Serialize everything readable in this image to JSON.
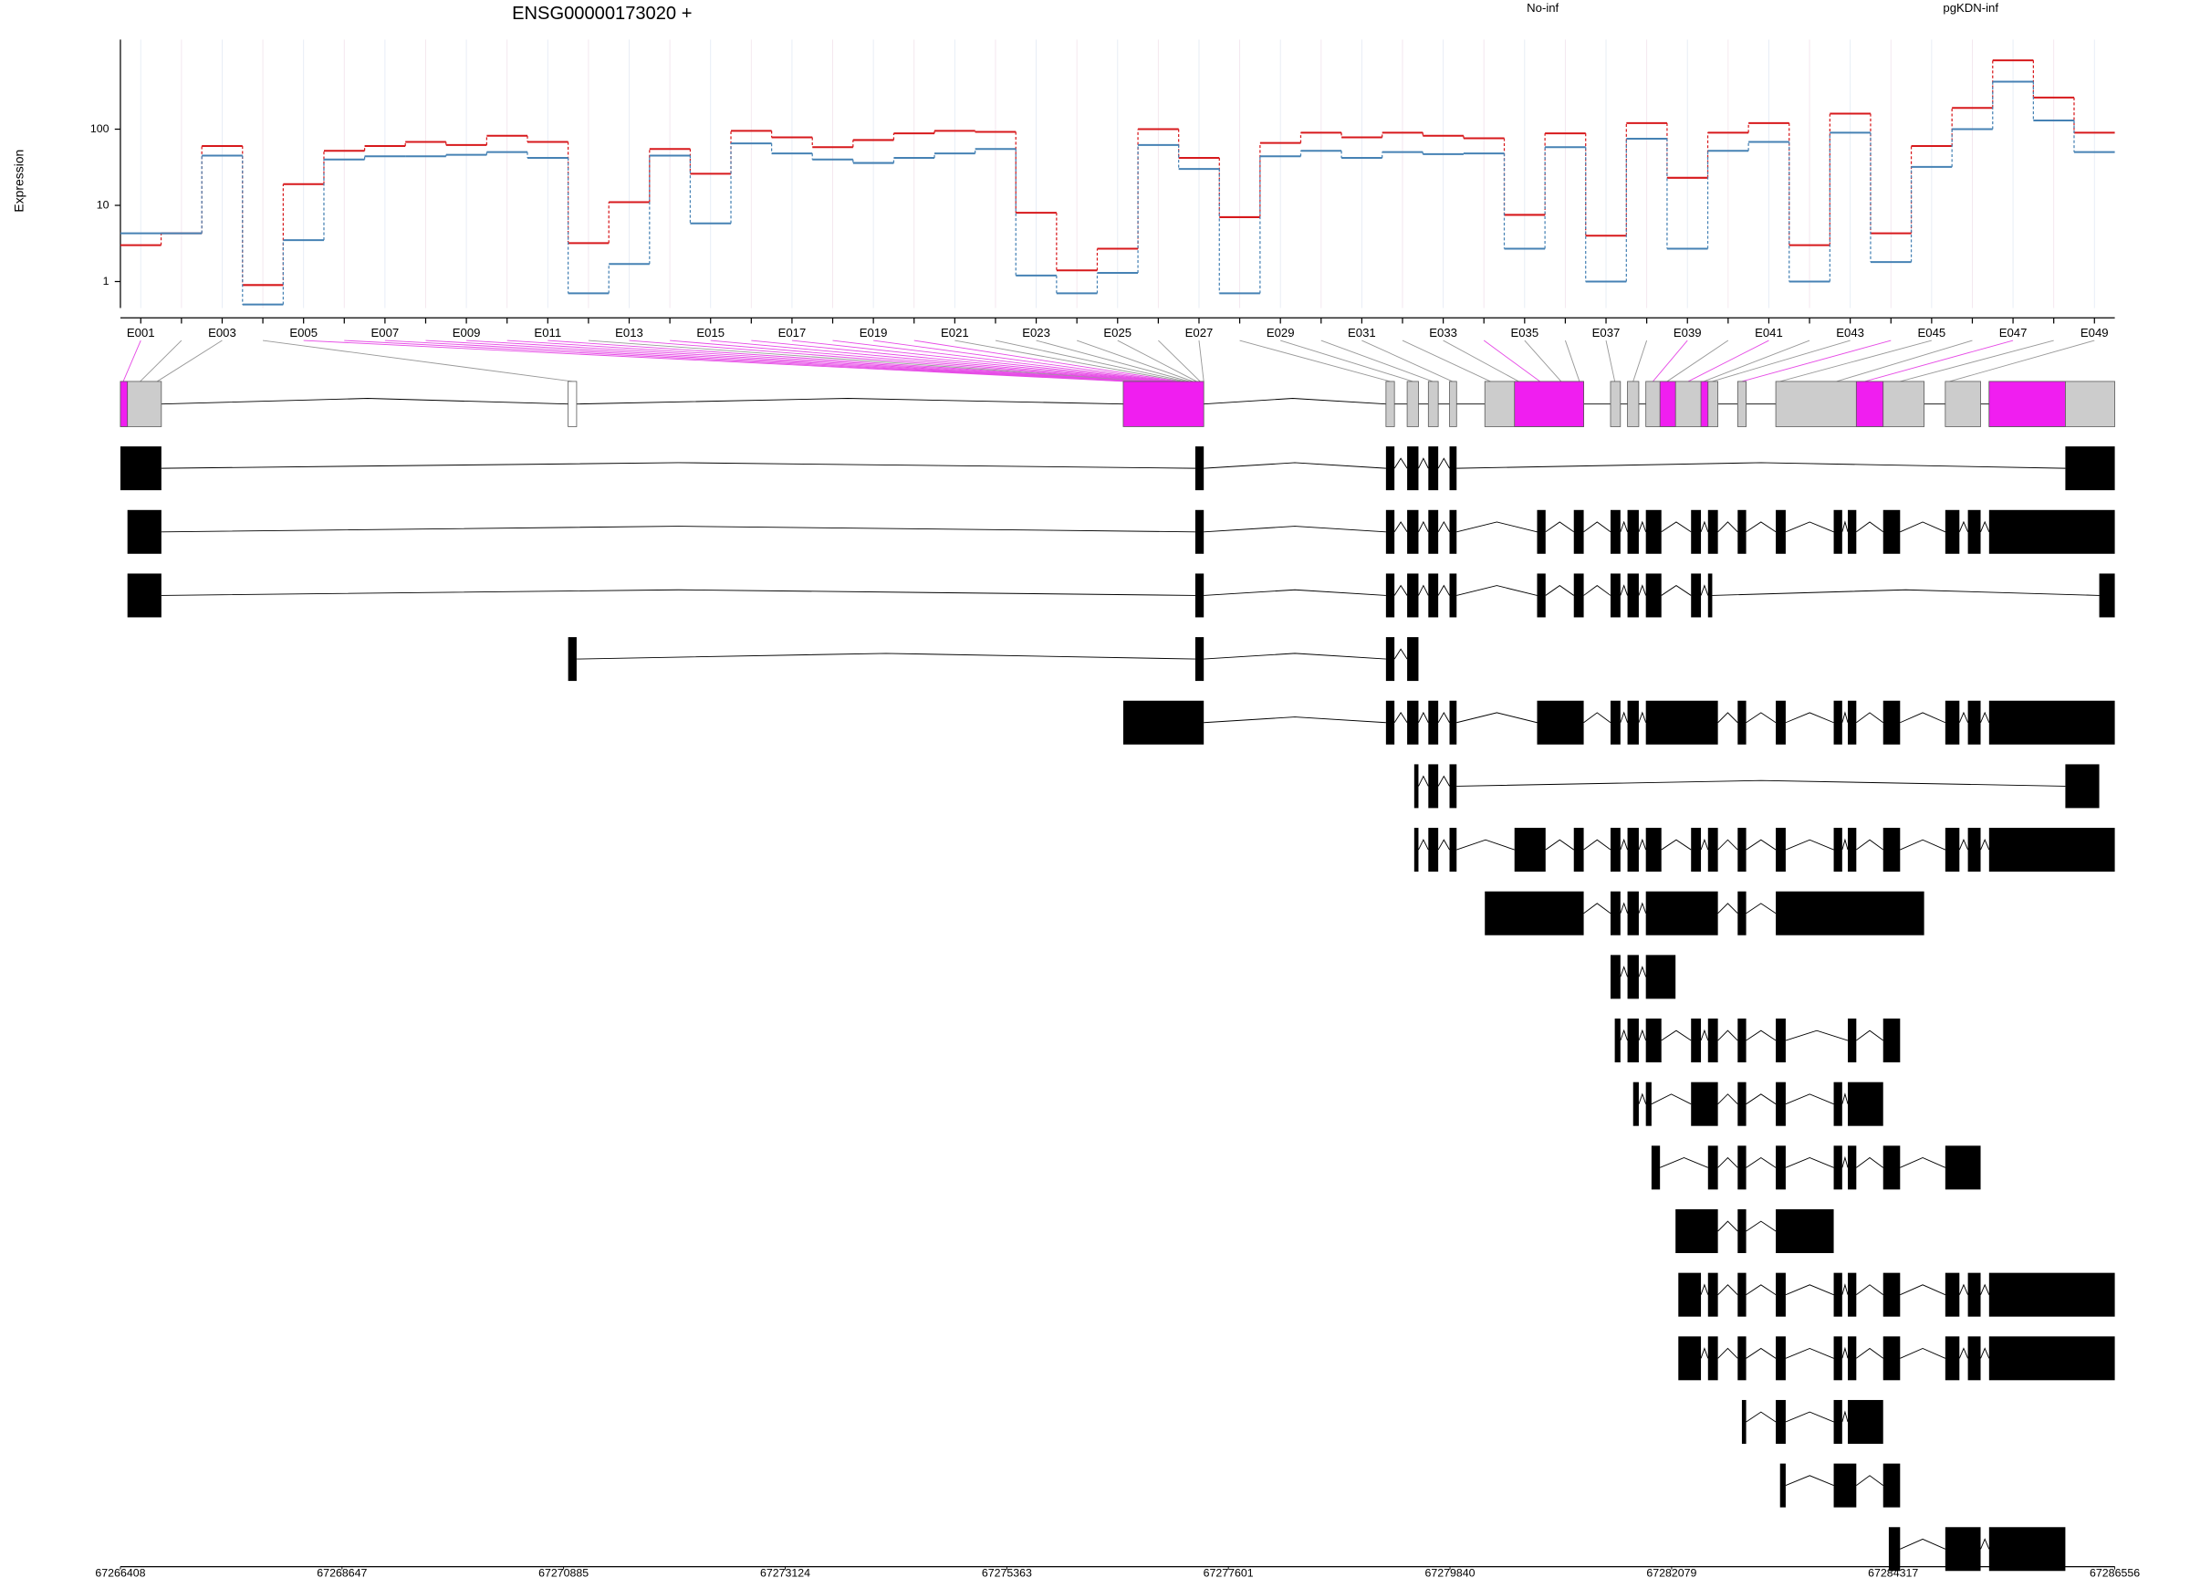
{
  "chart_data": [
    {
      "type": "step",
      "title": "ENSG00000173020 +",
      "y_label": "Expression",
      "log_scale": true,
      "grid": true,
      "ylim": [
        0.45,
        1500
      ],
      "yticks": [
        1,
        10,
        100
      ],
      "categories": [
        "E001",
        null,
        "E003",
        null,
        "E005",
        null,
        "E007",
        null,
        "E009",
        null,
        "E011",
        null,
        "E013",
        null,
        "E015",
        null,
        "E017",
        null,
        "E019",
        null,
        "E021",
        null,
        "E023",
        null,
        "E025",
        null,
        "E027",
        null,
        "E029",
        null,
        "E031",
        null,
        "E033",
        null,
        "E035",
        null,
        "E037",
        null,
        "E039",
        null,
        "E041",
        null,
        "E043",
        null,
        "E045",
        null,
        "E047",
        null,
        "E049"
      ],
      "series": [
        {
          "name": "No-inf",
          "color": "#d7191c",
          "values": [
            3,
            4.3,
            60,
            0.9,
            19,
            52,
            60,
            68,
            62,
            82,
            68,
            3.2,
            11,
            55,
            26,
            95,
            78,
            58,
            72,
            88,
            95,
            92,
            8,
            1.4,
            2.7,
            100,
            42,
            7,
            66,
            90,
            78,
            90,
            82,
            76,
            7.5,
            88,
            4,
            120,
            23,
            90,
            120,
            3,
            160,
            4.3,
            60,
            190,
            800,
            260,
            90
          ]
        },
        {
          "name": "pgKDN-inf",
          "color": "#4682b4",
          "values": [
            4.3,
            4.3,
            45,
            0.5,
            3.5,
            40,
            44,
            44,
            46,
            50,
            42,
            0.7,
            1.7,
            45,
            5.8,
            65,
            48,
            40,
            36,
            42,
            48,
            55,
            1.2,
            0.7,
            1.3,
            62,
            30,
            0.7,
            44,
            52,
            42,
            50,
            47,
            48,
            2.7,
            58,
            1.0,
            75,
            2.7,
            52,
            68,
            1.0,
            90,
            1.8,
            32,
            100,
            420,
            130,
            50
          ]
        }
      ]
    },
    {
      "type": "gene-model",
      "xlim": [
        67266408,
        67286556
      ],
      "xticks": [
        67266408,
        67268647,
        67270885,
        67273124,
        67275363,
        67277601,
        67279840,
        67282079,
        67284317,
        67286556
      ]
    }
  ]
}
